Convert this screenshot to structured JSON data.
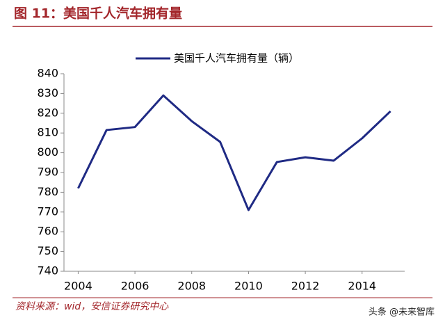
{
  "chart_data": {
    "type": "line",
    "title": "图 11：美国千人汽车拥有量",
    "x": [
      2004,
      2005,
      2006,
      2007,
      2008,
      2009,
      2010,
      2011,
      2012,
      2013,
      2014,
      2015
    ],
    "series": [
      {
        "name": "美国千人汽车拥有量（辆）",
        "color": "#1f2a84",
        "values": [
          782,
          811.5,
          813,
          829,
          816,
          805.5,
          771,
          795.3,
          797.7,
          796,
          807.3,
          821
        ]
      }
    ],
    "xlim": [
      2003.5,
      2015.5
    ],
    "xticks": [
      2004,
      2006,
      2008,
      2010,
      2012,
      2014
    ],
    "ylim": [
      740,
      840
    ],
    "yticks": [
      740,
      750,
      760,
      770,
      780,
      790,
      800,
      810,
      820,
      830,
      840
    ],
    "source": "资料来源：wid，安信证券研究中心",
    "watermark": "头条 @未来智库"
  }
}
